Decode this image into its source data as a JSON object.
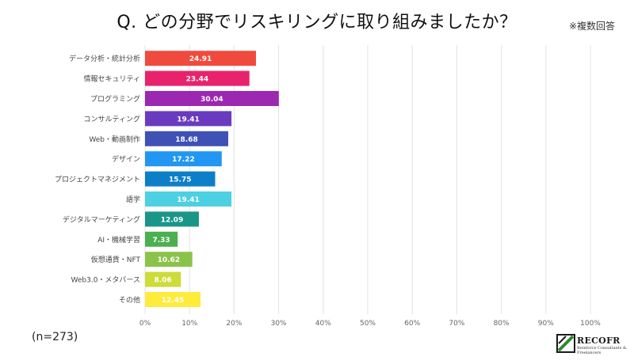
{
  "title": "Q. どの分野でリスキリングに取り組みましたか？",
  "note": "※複数回答",
  "sample_size": "(n=273)",
  "logo": {
    "name": "RECOFR",
    "subtitle": "Reinforce Consultants & Freelancers",
    "green": "#2e8b2e",
    "dark": "#1a1a1a"
  },
  "chart_data": {
    "type": "bar",
    "orientation": "horizontal",
    "categories": [
      "データ分析・統計分析",
      "情報セキュリティ",
      "プログラミング",
      "コンサルティング",
      "Web・動画制作",
      "デザイン",
      "プロジェクトマネジメント",
      "語学",
      "デジタルマーケティング",
      "AI・機械学習",
      "仮想通貨・NFT",
      "Web3.0・メタバース",
      "その他"
    ],
    "values": [
      24.91,
      23.44,
      30.04,
      19.41,
      18.68,
      17.22,
      15.75,
      19.41,
      12.09,
      7.33,
      10.62,
      8.06,
      12.45
    ],
    "value_labels": [
      "24.91",
      "23.44",
      "30.04",
      "19.41",
      "18.68",
      "17.22",
      "15.75",
      "19.41",
      "12.09",
      "7.33",
      "10.62",
      "8.06",
      "12.45"
    ],
    "colors": [
      "#f04a3e",
      "#e8236b",
      "#9c27b0",
      "#6a3bbf",
      "#3f51b5",
      "#2196f3",
      "#0d7fc9",
      "#4dd0e1",
      "#1a9688",
      "#4caf50",
      "#8bc34a",
      "#cddc39",
      "#ffeb3b"
    ],
    "xlim": [
      0,
      100
    ],
    "xticks": [
      "0%",
      "10%",
      "20%",
      "30%",
      "40%",
      "50%",
      "60%",
      "70%",
      "80%",
      "90%",
      "100%"
    ],
    "grid": true,
    "xlabel": "",
    "ylabel": ""
  }
}
